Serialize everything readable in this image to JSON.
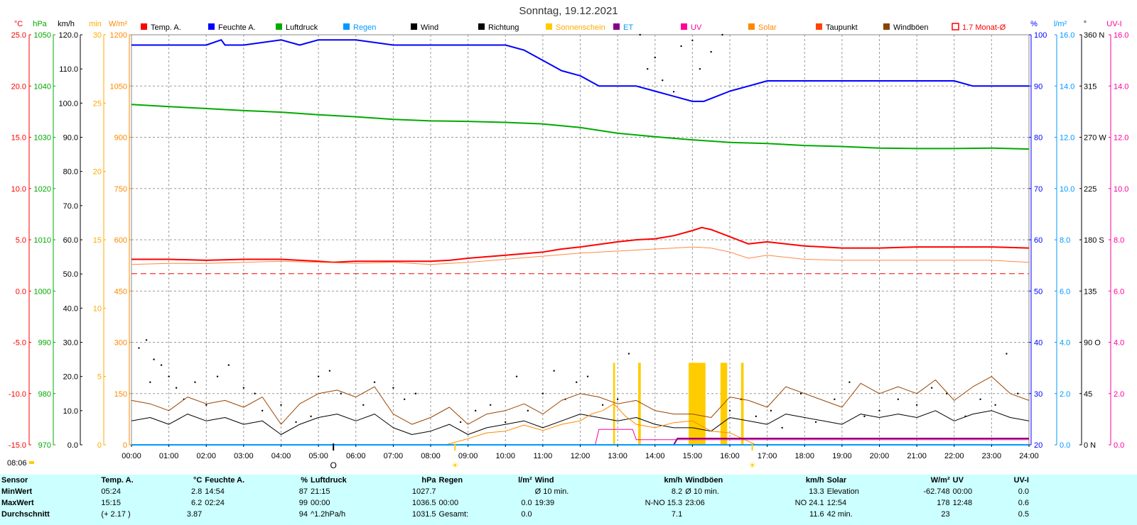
{
  "title": "Sonntag, 19.12.2021",
  "corner_time": "08:06",
  "left_axes": [
    {
      "unit": "°C",
      "color": "#ff0000",
      "ticks": [
        "25.0",
        "20.0",
        "15.0",
        "10.0",
        "5.0",
        "0.0",
        "-5.0",
        "-10.0",
        "-15.0"
      ]
    },
    {
      "unit": "hPa",
      "color": "#00aa00",
      "ticks": [
        "1050",
        "1040",
        "1030",
        "1020",
        "1010",
        "1000",
        "990",
        "980",
        "970"
      ]
    },
    {
      "unit": "km/h",
      "color": "#000000",
      "ticks": [
        "120.0",
        "110.0",
        "100.0",
        "90.0",
        "80.0",
        "70.0",
        "60.0",
        "50.0",
        "40.0",
        "30.0",
        "20.0",
        "10.0",
        "0.0"
      ]
    },
    {
      "unit": "min",
      "color": "#ffaa00",
      "ticks": [
        "30",
        "25",
        "20",
        "15",
        "10",
        "5",
        "0"
      ]
    },
    {
      "unit": "W/m²",
      "color": "#ff8800",
      "ticks": [
        "1200",
        "1050",
        "900",
        "750",
        "600",
        "450",
        "300",
        "150",
        "0"
      ]
    }
  ],
  "right_axes": [
    {
      "unit": "%",
      "color": "#0000ff",
      "ticks": [
        "100",
        "90",
        "80",
        "70",
        "60",
        "50",
        "40",
        "30",
        "20"
      ]
    },
    {
      "unit": "l/m²",
      "color": "#0099ff",
      "ticks": [
        "16.0",
        "14.0",
        "12.0",
        "10.0",
        "8.0",
        "6.0",
        "4.0",
        "2.0",
        "0.0"
      ]
    },
    {
      "unit": "°",
      "color": "#000000",
      "ticks": [
        "360 N",
        "315",
        "270 W",
        "225",
        "180 S",
        "135",
        "90 O",
        "45",
        "0 N"
      ]
    },
    {
      "unit": "UV-I",
      "color": "#ff0099",
      "ticks": [
        "16.0",
        "14.0",
        "12.0",
        "10.0",
        "8.0",
        "6.0",
        "4.0",
        "2.0",
        "0.0"
      ]
    }
  ],
  "legend": [
    {
      "label": "Temp. A.",
      "color": "#ff0000",
      "label_color": "#000000",
      "box": "filled"
    },
    {
      "label": "Feuchte A.",
      "color": "#0000ff",
      "label_color": "#000000",
      "box": "filled"
    },
    {
      "label": "Luftdruck",
      "color": "#00aa00",
      "label_color": "#000000",
      "box": "filled"
    },
    {
      "label": "Regen",
      "color": "#0099ff",
      "label_color": "#0099ff",
      "box": "filled"
    },
    {
      "label": "Wind",
      "color": "#000000",
      "label_color": "#000000",
      "box": "filled"
    },
    {
      "label": "Richtung",
      "color": "#000000",
      "label_color": "#000000",
      "box": "filled"
    },
    {
      "label": "Sonnenschein",
      "color": "#ffcc00",
      "label_color": "#ffaa00",
      "box": "filled"
    },
    {
      "label": "ET",
      "color": "#880088",
      "label_color": "#0099ff",
      "box": "filled"
    },
    {
      "label": "UV",
      "color": "#ff0099",
      "label_color": "#ff0099",
      "box": "filled"
    },
    {
      "label": "Solar",
      "color": "#ff8800",
      "label_color": "#ff8800",
      "box": "filled"
    },
    {
      "label": "Taupunkt",
      "color": "#ff4400",
      "label_color": "#000000",
      "box": "filled"
    },
    {
      "label": "Windböen",
      "color": "#884400",
      "label_color": "#000000",
      "box": "filled"
    },
    {
      "label": "1.7 Monat-Ø",
      "color": "#ff0000",
      "label_color": "#ff0000",
      "box": "outline"
    }
  ],
  "chart_data": {
    "type": "line",
    "title": "Sonntag, 19.12.2021",
    "x_labels": [
      "00:00",
      "01:00",
      "02:00",
      "03:00",
      "04:00",
      "05:00",
      "06:00",
      "07:00",
      "08:00",
      "09:00",
      "10:00",
      "11:00",
      "12:00",
      "13:00",
      "14:00",
      "15:00",
      "16:00",
      "17:00",
      "18:00",
      "19:00",
      "20:00",
      "21:00",
      "22:00",
      "23:00",
      "24:00"
    ],
    "x_range": [
      0,
      24
    ],
    "grid": true,
    "series": [
      {
        "name": "Temp. A.",
        "unit": "°C",
        "range": [
          -15,
          25
        ],
        "color": "#ff0000",
        "width": 2,
        "x": [
          0,
          1,
          2,
          3,
          4,
          5,
          5.4,
          6,
          7,
          8,
          8.5,
          9,
          10,
          11,
          11.5,
          12,
          13,
          13.5,
          14,
          14.5,
          15,
          15.25,
          15.5,
          16,
          16.5,
          17,
          18,
          19,
          20,
          21,
          22,
          23,
          24
        ],
        "y": [
          3.1,
          3.1,
          3.0,
          3.1,
          3.1,
          2.9,
          2.8,
          2.9,
          2.9,
          2.9,
          3.0,
          3.2,
          3.5,
          3.8,
          4.1,
          4.3,
          4.8,
          5.0,
          5.1,
          5.4,
          5.9,
          6.2,
          6.0,
          5.3,
          4.6,
          4.8,
          4.4,
          4.2,
          4.2,
          4.3,
          4.3,
          4.3,
          4.2
        ]
      },
      {
        "name": "Taupunkt",
        "unit": "°C",
        "range": [
          -15,
          25
        ],
        "color": "#ff8844",
        "width": 1,
        "x": [
          0,
          1,
          2,
          3,
          4,
          5,
          6,
          7,
          8,
          9,
          10,
          11,
          12,
          13,
          14,
          14.5,
          15,
          15.5,
          16,
          16.5,
          17,
          18,
          19,
          20,
          21,
          22,
          23,
          24
        ],
        "y": [
          2.6,
          2.7,
          2.7,
          2.8,
          2.9,
          2.8,
          2.7,
          2.8,
          2.6,
          2.8,
          3.1,
          3.4,
          3.7,
          3.9,
          4.1,
          4.2,
          4.3,
          4.2,
          3.8,
          3.2,
          3.5,
          3.1,
          3.0,
          3.0,
          3.0,
          3.0,
          3.0,
          2.8
        ]
      },
      {
        "name": "Luftdruck",
        "unit": "hPa",
        "range": [
          970,
          1050
        ],
        "color": "#00aa00",
        "width": 2,
        "x": [
          0,
          1,
          2,
          3,
          4,
          5,
          6,
          7,
          8,
          9,
          10,
          11,
          12,
          13,
          14,
          15,
          16,
          17,
          18,
          19,
          20,
          21,
          22,
          23,
          24
        ],
        "y": [
          1036.4,
          1036.0,
          1035.6,
          1035.2,
          1034.9,
          1034.4,
          1034.0,
          1033.5,
          1033.2,
          1033.1,
          1032.9,
          1032.6,
          1031.9,
          1030.8,
          1030.1,
          1029.5,
          1029.0,
          1028.8,
          1028.4,
          1028.2,
          1027.9,
          1027.8,
          1027.8,
          1027.9,
          1027.7
        ]
      },
      {
        "name": "Feuchte A.",
        "unit": "%",
        "range": [
          20,
          100
        ],
        "color": "#0000ff",
        "width": 2,
        "x": [
          0,
          1,
          2,
          2.4,
          2.5,
          3,
          4,
          4.5,
          5,
          6,
          7,
          8,
          9,
          10,
          10.5,
          11,
          11.5,
          12,
          12.5,
          13,
          13.5,
          14,
          14.5,
          15,
          15.3,
          16,
          16.5,
          17,
          18,
          19,
          20,
          21,
          22,
          22.5,
          23,
          24
        ],
        "y": [
          98,
          98,
          98,
          99,
          98,
          98,
          99,
          98,
          99,
          99,
          98,
          98,
          98,
          98,
          97,
          95,
          93,
          92,
          90,
          90,
          90,
          89,
          88,
          87,
          87,
          89,
          90,
          91,
          91,
          91,
          91,
          91,
          91,
          90,
          90,
          90
        ]
      },
      {
        "name": "1.7 Monat-Ø",
        "unit": "°C",
        "range": [
          -15,
          25
        ],
        "color": "#ff0000",
        "width": 1,
        "dash": "8,5",
        "x": [
          0,
          24
        ],
        "y": [
          1.7,
          1.7
        ]
      },
      {
        "name": "Wind",
        "unit": "km/h",
        "range": [
          0,
          120
        ],
        "color": "#000000",
        "width": 1,
        "x": [
          0,
          0.5,
          1,
          1.5,
          2,
          2.5,
          3,
          3.5,
          4,
          4.5,
          5,
          5.5,
          6,
          6.5,
          7,
          7.5,
          8,
          8.5,
          9,
          9.5,
          10,
          10.5,
          11,
          11.5,
          12,
          12.5,
          13,
          13.5,
          14,
          14.5,
          15,
          15.5,
          16,
          16.5,
          17,
          17.5,
          18,
          18.5,
          19,
          19.5,
          20,
          20.5,
          21,
          21.5,
          22,
          22.5,
          23,
          23.5,
          24
        ],
        "y": [
          7,
          8,
          6,
          9,
          7,
          8,
          6,
          7,
          3,
          6,
          8,
          9,
          7,
          9,
          5,
          3,
          4,
          6,
          3,
          5,
          6,
          7,
          5,
          7,
          9,
          8,
          7,
          8,
          6,
          5,
          5,
          4,
          8,
          7,
          6,
          9,
          8,
          7,
          6,
          9,
          8,
          9,
          8,
          10,
          7,
          9,
          10,
          8,
          7
        ]
      },
      {
        "name": "Windböen",
        "unit": "km/h",
        "range": [
          0,
          120
        ],
        "color": "#994400",
        "width": 1,
        "x": [
          0,
          0.5,
          1,
          1.5,
          2,
          2.5,
          3,
          3.5,
          4,
          4.5,
          5,
          5.5,
          6,
          6.5,
          7,
          7.5,
          8,
          8.5,
          9,
          9.5,
          10,
          10.5,
          11,
          11.5,
          12,
          12.5,
          13,
          13.5,
          14,
          14.5,
          15,
          15.5,
          16,
          16.5,
          17,
          17.5,
          18,
          18.5,
          19,
          19.5,
          20,
          20.5,
          21,
          21.5,
          22,
          22.5,
          23,
          23.5,
          24
        ],
        "y": [
          13,
          12,
          10,
          14,
          12,
          13,
          11,
          14,
          6,
          12,
          15,
          16,
          14,
          17,
          9,
          6,
          8,
          11,
          6,
          9,
          10,
          12,
          9,
          13,
          15,
          14,
          12,
          13,
          10,
          9,
          9,
          8,
          14,
          13,
          11,
          17,
          15,
          13,
          11,
          18,
          15,
          17,
          15,
          19,
          13,
          17,
          20,
          15,
          13
        ]
      },
      {
        "name": "Solar",
        "unit": "W/m²",
        "range": [
          0,
          1200
        ],
        "color": "#ff8800",
        "width": 1,
        "x": [
          8.4,
          9,
          9.5,
          10,
          10.5,
          11,
          11.5,
          12,
          12.3,
          12.6,
          12.9,
          13.2,
          13.5,
          14,
          14.5,
          15,
          15.5,
          16,
          16.5,
          16.7
        ],
        "y": [
          0,
          18,
          35,
          40,
          58,
          42,
          60,
          70,
          90,
          100,
          120,
          85,
          60,
          50,
          65,
          70,
          40,
          35,
          10,
          0
        ]
      },
      {
        "name": "UV",
        "unit": "UV-I",
        "range": [
          0,
          16
        ],
        "color": "#ff0099",
        "width": 1,
        "x": [
          11.5,
          12.4,
          12.5,
          13.4,
          13.5,
          24
        ],
        "y": [
          0.0,
          0.0,
          0.6,
          0.6,
          0.2,
          0.2
        ]
      },
      {
        "name": "ET",
        "unit": "l/m²",
        "range": [
          0,
          16
        ],
        "color": "#880088",
        "width": 2,
        "x": [
          11,
          14.5,
          14.6,
          24
        ],
        "y": [
          0.0,
          0.0,
          0.25,
          0.25
        ]
      },
      {
        "name": "Regen",
        "unit": "l/m²",
        "range": [
          0,
          16
        ],
        "color": "#0099ff",
        "width": 2,
        "x": [
          0,
          24
        ],
        "y": [
          0.0,
          0.0
        ]
      }
    ],
    "direction_points": {
      "name": "Richtung",
      "unit": "°",
      "range": [
        0,
        360
      ],
      "x": [
        0.2,
        0.4,
        0.5,
        0.6,
        0.8,
        1.0,
        1.2,
        1.4,
        1.7,
        2.0,
        2.3,
        2.6,
        3.0,
        3.3,
        3.5,
        4.0,
        4.4,
        4.8,
        5.0,
        5.3,
        5.6,
        6.2,
        6.5,
        7.0,
        7.3,
        7.6,
        8.8,
        9.2,
        9.6,
        10.0,
        10.3,
        10.6,
        11.0,
        11.3,
        11.6,
        11.9,
        12.2,
        12.6,
        13.0,
        13.3,
        13.6,
        13.8,
        14.0,
        14.2,
        14.5,
        14.7,
        15.0,
        15.2,
        15.5,
        15.8,
        16.0,
        16.3,
        16.7,
        17.1,
        17.4,
        17.9,
        18.3,
        18.8,
        19.2,
        19.6,
        20.0,
        20.5,
        21.0,
        21.4,
        21.8,
        22.3,
        22.7,
        23.1,
        23.4,
        23.7
      ],
      "y": [
        85,
        92,
        55,
        75,
        70,
        60,
        50,
        40,
        55,
        35,
        60,
        70,
        50,
        45,
        30,
        35,
        20,
        25,
        60,
        65,
        45,
        35,
        55,
        50,
        40,
        45,
        20,
        30,
        35,
        20,
        60,
        30,
        45,
        65,
        40,
        55,
        60,
        35,
        40,
        80,
        360,
        330,
        340,
        320,
        310,
        350,
        355,
        330,
        345,
        360,
        30,
        40,
        25,
        30,
        15,
        45,
        20,
        40,
        55,
        25,
        30,
        40,
        35,
        50,
        45,
        25,
        40,
        35,
        80,
        45
      ]
    },
    "sunshine_bars": [
      [
        12.88,
        12.93
      ],
      [
        13.55,
        13.62
      ],
      [
        14.9,
        15.35
      ],
      [
        15.75,
        15.93
      ],
      [
        16.3,
        16.37
      ]
    ],
    "x_markers": [
      {
        "label": "O",
        "x": 5.4,
        "color": "#000000"
      },
      {
        "label": "☀",
        "x": 8.65,
        "color": "#ffcc00"
      },
      {
        "label": "☀",
        "x": 16.6,
        "color": "#ffcc00"
      }
    ]
  },
  "stats": {
    "headers": [
      "Sensor",
      "Temp. A.",
      "°C",
      "Feuchte A.",
      "%",
      "Luftdruck",
      "hPa",
      "Regen",
      "l/m²",
      "Wind",
      "km/h",
      "Windböen",
      "km/h",
      "Solar",
      "W/m²",
      "UV",
      "UV-I"
    ],
    "rows": [
      {
        "label": "MinWert",
        "cells": [
          "05:24",
          "2.8",
          "14:54",
          "87",
          "21:15",
          "1027.7",
          "",
          "",
          "Ø 10 min.",
          "8.2",
          "Ø 10 min.",
          "13.3",
          "Elevation",
          "-62.748",
          "00:00",
          "0.0"
        ]
      },
      {
        "label": "MaxWert",
        "cells": [
          "15:15",
          "6.2",
          "02:24",
          "99",
          "00:00",
          "1036.5",
          "00:00",
          "0.0",
          "19:39",
          "N-NO 15.3",
          "23:06",
          "NO 24.1",
          "12:54",
          "178",
          "12:48",
          "0.6"
        ]
      },
      {
        "label": "Durchschnitt",
        "cells": [
          "(+ 2.17 )",
          "3.87",
          "",
          "94",
          "^1.2hPa/h",
          "1031.5",
          "Gesamt:",
          "0.0",
          "",
          "7.1",
          "",
          "11.6",
          "42 min.",
          "23",
          "",
          "0.5"
        ]
      }
    ]
  }
}
